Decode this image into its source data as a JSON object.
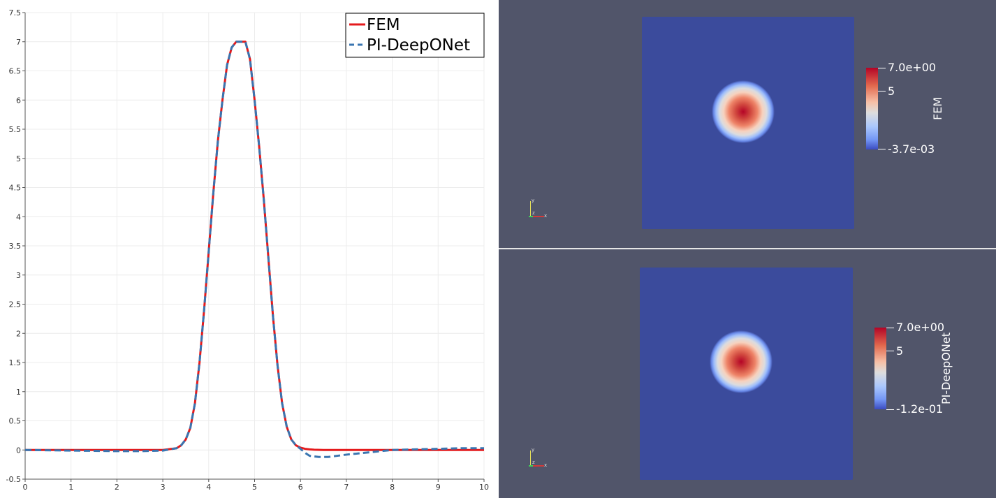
{
  "chart_data": {
    "type": "line",
    "title": "",
    "xlabel": "",
    "ylabel": "",
    "xlim": [
      0,
      10
    ],
    "ylim": [
      -0.5,
      7.5
    ],
    "grid": true,
    "legend_position": "top-right",
    "x_ticks": [
      "0",
      "1",
      "2",
      "3",
      "4",
      "5",
      "6",
      "7",
      "8",
      "9",
      "10"
    ],
    "y_ticks": [
      "-0.5",
      "0",
      "0.5",
      "1",
      "1.5",
      "2",
      "2.5",
      "3",
      "3.5",
      "4",
      "4.5",
      "5",
      "5.5",
      "6",
      "6.5",
      "7",
      "7.5"
    ],
    "series": [
      {
        "name": "FEM",
        "color": "#e41a1c",
        "style": "solid",
        "x": [
          0,
          1,
          2,
          3,
          3.3,
          3.4,
          3.5,
          3.6,
          3.7,
          3.8,
          3.9,
          4.0,
          4.1,
          4.2,
          4.3,
          4.4,
          4.5,
          4.6,
          4.7,
          4.8,
          4.9,
          5.0,
          5.1,
          5.2,
          5.3,
          5.4,
          5.5,
          5.6,
          5.7,
          5.8,
          5.9,
          6.0,
          6.1,
          6.2,
          6.3,
          6.5,
          7,
          8,
          9,
          10
        ],
        "y": [
          0,
          0,
          0,
          0,
          0.03,
          0.08,
          0.18,
          0.38,
          0.8,
          1.5,
          2.4,
          3.4,
          4.4,
          5.3,
          6.0,
          6.6,
          6.9,
          7.0,
          7.0,
          7.0,
          6.7,
          6.0,
          5.2,
          4.3,
          3.3,
          2.3,
          1.45,
          0.8,
          0.4,
          0.18,
          0.08,
          0.04,
          0.02,
          0.01,
          0.005,
          0,
          0,
          0,
          0,
          0
        ]
      },
      {
        "name": "PI-DeepONet",
        "color": "#3a75b0",
        "style": "dashed",
        "x": [
          0,
          1,
          2,
          2.5,
          3,
          3.3,
          3.4,
          3.5,
          3.6,
          3.7,
          3.8,
          3.9,
          4.0,
          4.1,
          4.2,
          4.3,
          4.4,
          4.5,
          4.6,
          4.7,
          4.8,
          4.9,
          5.0,
          5.1,
          5.2,
          5.3,
          5.4,
          5.5,
          5.6,
          5.7,
          5.8,
          5.9,
          6.0,
          6.1,
          6.2,
          6.4,
          6.6,
          7,
          7.5,
          8,
          8.5,
          9,
          9.5,
          10
        ],
        "y": [
          0,
          -0.01,
          -0.02,
          -0.02,
          -0.01,
          0.03,
          0.08,
          0.18,
          0.38,
          0.8,
          1.5,
          2.4,
          3.4,
          4.4,
          5.3,
          6.0,
          6.6,
          6.9,
          7.0,
          7.0,
          7.0,
          6.7,
          6.0,
          5.2,
          4.3,
          3.3,
          2.3,
          1.45,
          0.8,
          0.4,
          0.18,
          0.08,
          0.02,
          -0.05,
          -0.1,
          -0.12,
          -0.12,
          -0.08,
          -0.04,
          0.0,
          0.01,
          0.02,
          0.03,
          0.03
        ]
      }
    ]
  },
  "views": {
    "top": {
      "scalar_title": "FEM",
      "max_label": "7.0e+00",
      "mid_label": "5",
      "min_label": "-3.7e-03",
      "axes_labels": {
        "x": "x",
        "y": "y",
        "z": "z"
      }
    },
    "bottom": {
      "scalar_title": "PI-DeepONet",
      "max_label": "7.0e+00",
      "mid_label": "5",
      "min_label": "-1.2e-01",
      "axes_labels": {
        "x": "x",
        "y": "y",
        "z": "z"
      }
    }
  }
}
